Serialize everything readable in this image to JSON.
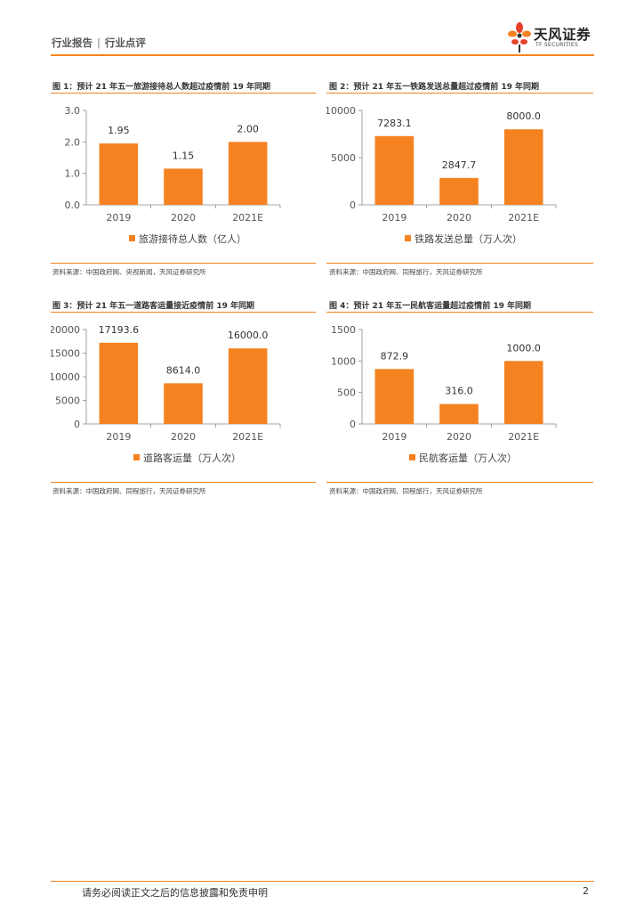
{
  "header": {
    "doc_type": "行业报告",
    "separator": "|",
    "category": "行业点评",
    "logo_text": "天风证券",
    "logo_sub": "TF SECURITIES"
  },
  "colors": {
    "accent": "#F58220",
    "bar": "#F58220"
  },
  "figures": [
    {
      "title": "图 1：预计 21 年五一旅游接待总人数超过疫情前 19 年同期",
      "source": "资料来源：中国政府网、央视新闻，天风证券研究所"
    },
    {
      "title": "图 2：预计 21 年五一铁路发送总量超过疫情前 19 年同期",
      "source": "资料来源：中国政府网、同程旅行，天风证券研究所"
    },
    {
      "title": "图 3：预计 21 年五一道路客运量接近疫情前 19 年同期",
      "source": "资料来源：中国政府网、同程旅行，天风证券研究所"
    },
    {
      "title": "图 4：预计 21 年五一民航客运量超过疫情前 19 年同期",
      "source": "资料来源：中国政府网、同程旅行，天风证券研究所"
    }
  ],
  "chart_data": [
    {
      "type": "bar",
      "categories": [
        "2019",
        "2020",
        "2021E"
      ],
      "values": [
        1.95,
        1.15,
        2.0
      ],
      "value_labels": [
        "1.95",
        "1.15",
        "2.00"
      ],
      "yticks": [
        "0.0",
        "1.0",
        "2.0",
        "3.0"
      ],
      "ylim": [
        0,
        3
      ],
      "series": [
        {
          "name": "旅游接待总人数（亿人）",
          "values": [
            1.95,
            1.15,
            2.0
          ]
        }
      ],
      "legend": "bottom"
    },
    {
      "type": "bar",
      "categories": [
        "2019",
        "2020",
        "2021E"
      ],
      "values": [
        7283.1,
        2847.7,
        8000.0
      ],
      "value_labels": [
        "7283.1",
        "2847.7",
        "8000.0"
      ],
      "yticks": [
        "0",
        "5000",
        "10000"
      ],
      "ylim": [
        0,
        10000
      ],
      "series": [
        {
          "name": "铁路发送总量（万人次）",
          "values": [
            7283.1,
            2847.7,
            8000.0
          ]
        }
      ],
      "legend": "bottom"
    },
    {
      "type": "bar",
      "categories": [
        "2019",
        "2020",
        "2021E"
      ],
      "values": [
        17193.6,
        8614.0,
        16000.0
      ],
      "value_labels": [
        "17193.6",
        "8614.0",
        "16000.0"
      ],
      "yticks": [
        "0",
        "5000",
        "10000",
        "15000",
        "20000"
      ],
      "ylim": [
        0,
        20000
      ],
      "series": [
        {
          "name": "道路客运量（万人次）",
          "values": [
            17193.6,
            8614.0,
            16000.0
          ]
        }
      ],
      "legend": "bottom"
    },
    {
      "type": "bar",
      "categories": [
        "2019",
        "2020",
        "2021E"
      ],
      "values": [
        872.9,
        316.0,
        1000.0
      ],
      "value_labels": [
        "872.9",
        "316.0",
        "1000.0"
      ],
      "yticks": [
        "0",
        "500",
        "1000",
        "1500"
      ],
      "ylim": [
        0,
        1500
      ],
      "series": [
        {
          "name": "民航客运量（万人次）",
          "values": [
            872.9,
            316.0,
            1000.0
          ]
        }
      ],
      "legend": "bottom"
    }
  ],
  "footer": {
    "disclaimer": "请务必阅读正文之后的信息披露和免责申明",
    "page_number": "2"
  }
}
